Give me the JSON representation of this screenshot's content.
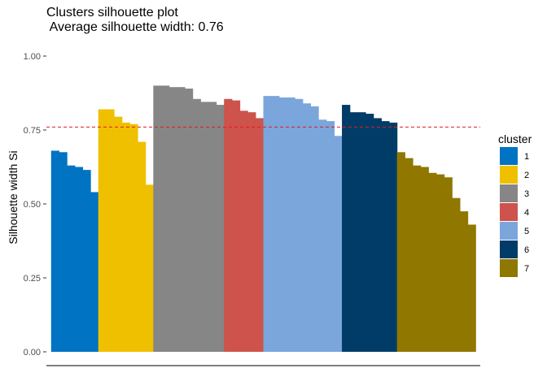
{
  "chart_data": {
    "type": "bar",
    "title": "Clusters silhouette plot",
    "subtitle": " Average silhouette width: 0.76",
    "xlabel": "",
    "ylabel": "Silhouette width Si",
    "ylim": [
      0,
      1
    ],
    "yticks": [
      "0.00",
      "0.25",
      "0.50",
      "0.75",
      "1.00"
    ],
    "average_line": 0.76,
    "average_line_color": "#e41a1c",
    "legend": {
      "title": "cluster",
      "position": "right"
    },
    "grid": false,
    "series": [
      {
        "name": "1",
        "color": "#0073c2",
        "values": [
          0.68,
          0.675,
          0.63,
          0.625,
          0.615,
          0.54
        ]
      },
      {
        "name": "2",
        "color": "#efc000",
        "values": [
          0.82,
          0.82,
          0.795,
          0.775,
          0.77,
          0.71,
          0.565
        ]
      },
      {
        "name": "3",
        "color": "#868686",
        "values": [
          0.9,
          0.9,
          0.895,
          0.895,
          0.89,
          0.855,
          0.845,
          0.845,
          0.835
        ]
      },
      {
        "name": "4",
        "color": "#cd534c",
        "values": [
          0.855,
          0.85,
          0.815,
          0.81,
          0.79
        ]
      },
      {
        "name": "5",
        "color": "#7aa6dc",
        "values": [
          0.865,
          0.865,
          0.86,
          0.86,
          0.855,
          0.84,
          0.83,
          0.785,
          0.78,
          0.73
        ]
      },
      {
        "name": "6",
        "color": "#003c67",
        "values": [
          0.835,
          0.81,
          0.81,
          0.805,
          0.79,
          0.78,
          0.775
        ]
      },
      {
        "name": "7",
        "color": "#8f7700",
        "values": [
          0.675,
          0.655,
          0.63,
          0.625,
          0.605,
          0.6,
          0.59,
          0.52,
          0.475,
          0.43
        ]
      }
    ]
  }
}
